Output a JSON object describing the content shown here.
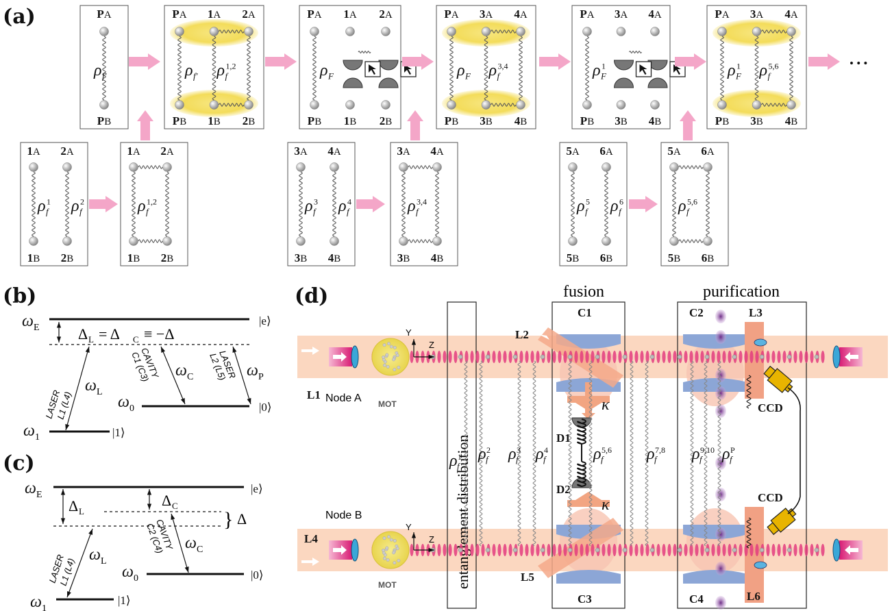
{
  "panel_labels": {
    "a": "(a)",
    "b": "(b)",
    "c": "(c)",
    "d": "(d)"
  },
  "boxes_top": [
    {
      "top_labels": [
        [
          "P",
          "A"
        ]
      ],
      "bottom_labels": [
        [
          "P",
          "B"
        ]
      ],
      "rho_base": "ρ",
      "rho_sub": "f'",
      "rho_sup": "",
      "extra_rho": null,
      "gold": false,
      "detect": false
    },
    {
      "top_labels": [
        [
          "P",
          "A"
        ],
        [
          "1",
          "A"
        ],
        [
          "2",
          "A"
        ]
      ],
      "bottom_labels": [
        [
          "P",
          "B"
        ],
        [
          "1",
          "B"
        ],
        [
          "2",
          "B"
        ]
      ],
      "rho_base": "ρ",
      "rho_sub": "f'",
      "rho_sup": "",
      "extra_rho": {
        "sub": "f",
        "sup": "1,2"
      },
      "gold": true,
      "detect": false
    },
    {
      "top_labels": [
        [
          "P",
          "A"
        ],
        [
          "1",
          "A"
        ],
        [
          "2",
          "A"
        ]
      ],
      "bottom_labels": [
        [
          "P",
          "B"
        ],
        [
          "1",
          "B"
        ],
        [
          "2",
          "B"
        ]
      ],
      "rho_base": "ρ",
      "rho_sub": "F",
      "rho_sup": "",
      "extra_rho": null,
      "gold": false,
      "detect": true
    },
    {
      "top_labels": [
        [
          "P",
          "A"
        ],
        [
          "3",
          "A"
        ],
        [
          "4",
          "A"
        ]
      ],
      "bottom_labels": [
        [
          "P",
          "B"
        ],
        [
          "3",
          "B"
        ],
        [
          "4",
          "B"
        ]
      ],
      "rho_base": "ρ",
      "rho_sub": "F",
      "rho_sup": "",
      "extra_rho": {
        "sub": "f",
        "sup": "3,4"
      },
      "gold": true,
      "detect": false
    },
    {
      "top_labels": [
        [
          "P",
          "A"
        ],
        [
          "3",
          "A"
        ],
        [
          "4",
          "A"
        ]
      ],
      "bottom_labels": [
        [
          "P",
          "B"
        ],
        [
          "3",
          "B"
        ],
        [
          "4",
          "B"
        ]
      ],
      "rho_base": "ρ",
      "rho_sub": "F",
      "rho_sup": "1",
      "extra_rho": null,
      "gold": false,
      "detect": true
    },
    {
      "top_labels": [
        [
          "P",
          "A"
        ],
        [
          "3",
          "A"
        ],
        [
          "4",
          "A"
        ]
      ],
      "bottom_labels": [
        [
          "P",
          "B"
        ],
        [
          "3",
          "B"
        ],
        [
          "4",
          "B"
        ]
      ],
      "rho_base": "ρ",
      "rho_sub": "F",
      "rho_sup": "1",
      "extra_rho": {
        "sub": "f",
        "sup": "5,6"
      },
      "gold": true,
      "detect": false
    }
  ],
  "boxes_bottom": [
    {
      "top_labels": [
        [
          "1",
          "A"
        ],
        [
          "2",
          "A"
        ]
      ],
      "bottom_labels": [
        [
          "1",
          "B"
        ],
        [
          "2",
          "B"
        ]
      ],
      "rhos": [
        {
          "sub": "f",
          "sup": "1"
        },
        {
          "sub": "f",
          "sup": "2"
        }
      ],
      "joined": false
    },
    {
      "top_labels": [
        [
          "1",
          "A"
        ],
        [
          "2",
          "A"
        ]
      ],
      "bottom_labels": [
        [
          "1",
          "B"
        ],
        [
          "2",
          "B"
        ]
      ],
      "rhos": [
        {
          "sub": "f",
          "sup": "1,2"
        }
      ],
      "joined": true
    },
    {
      "top_labels": [
        [
          "3",
          "A"
        ],
        [
          "4",
          "A"
        ]
      ],
      "bottom_labels": [
        [
          "3",
          "B"
        ],
        [
          "4",
          "B"
        ]
      ],
      "rhos": [
        {
          "sub": "f",
          "sup": "3"
        },
        {
          "sub": "f",
          "sup": "4"
        }
      ],
      "joined": false
    },
    {
      "top_labels": [
        [
          "3",
          "A"
        ],
        [
          "4",
          "A"
        ]
      ],
      "bottom_labels": [
        [
          "3",
          "B"
        ],
        [
          "4",
          "B"
        ]
      ],
      "rhos": [
        {
          "sub": "f",
          "sup": "3,4"
        }
      ],
      "joined": true
    },
    {
      "top_labels": [
        [
          "5",
          "A"
        ],
        [
          "6",
          "A"
        ]
      ],
      "bottom_labels": [
        [
          "5",
          "B"
        ],
        [
          "6",
          "B"
        ]
      ],
      "rhos": [
        {
          "sub": "f",
          "sup": "5"
        },
        {
          "sub": "f",
          "sup": "6"
        }
      ],
      "joined": false
    },
    {
      "top_labels": [
        [
          "5",
          "A"
        ],
        [
          "6",
          "A"
        ]
      ],
      "bottom_labels": [
        [
          "5",
          "B"
        ],
        [
          "6",
          "B"
        ]
      ],
      "rhos": [
        {
          "sub": "f",
          "sup": "5,6"
        }
      ],
      "joined": true
    }
  ],
  "ellipsis": "• • •",
  "panel_b": {
    "omega_e": "ω",
    "omega_e_sub": "E",
    "ket_e": "|e⟩",
    "ket_0": "|0⟩",
    "ket_1": "|1⟩",
    "detuning": "Δ",
    "detuning_L": "L",
    "detuning_C": "C",
    "detuning_eq": "= Δ",
    "detuning_eq2": "≡ −Δ",
    "laser1": "LASER",
    "laser1b": "L1 (L4)",
    "cavity": "CAVITY",
    "cavityb": "C1 (C3)",
    "laser2": "LASER",
    "laser2b": "L2 (L5)",
    "omega_l": "ω",
    "omega_l_sub": "L",
    "omega_c": "ω",
    "omega_c_sub": "C",
    "omega_p": "ω",
    "omega_p_sub": "P",
    "omega_0": "ω",
    "omega_0_sub": "0",
    "omega_1": "ω",
    "omega_1_sub": "1"
  },
  "panel_c": {
    "omega_e": "ω",
    "omega_e_sub": "E",
    "ket_e": "|e⟩",
    "ket_0": "|0⟩",
    "ket_1": "|1⟩",
    "delta_L": "Δ",
    "delta_L_sub": "L",
    "delta_C": "Δ",
    "delta_C_sub": "C",
    "delta": "Δ",
    "laser1": "LASER",
    "laser1b": "L1 (L4)",
    "cavity": "CAVITY",
    "cavityb": "C2 (C4)",
    "omega_l": "ω",
    "omega_l_sub": "L",
    "omega_c": "ω",
    "omega_c_sub": "C",
    "omega_0": "ω",
    "omega_0_sub": "0",
    "omega_1": "ω",
    "omega_1_sub": "1"
  },
  "panel_d": {
    "fusion": "fusion",
    "purification": "purification",
    "entanglement": "entanglement distribution",
    "node_a": "Node A",
    "node_b": "Node B",
    "mot": "MOT",
    "axis_y": "Y",
    "axis_z": "Z",
    "lasers": [
      "L1",
      "L2",
      "L3",
      "L4",
      "L5",
      "L6"
    ],
    "cavities": [
      "C1",
      "C2",
      "C3",
      "C4"
    ],
    "detectors": [
      "D1",
      "D2"
    ],
    "ccd": "CCD",
    "kappa": "κ",
    "rhos": [
      {
        "sub": "f",
        "sup": "1"
      },
      {
        "sub": "f",
        "sup": "2"
      },
      {
        "sub": "f",
        "sup": "3"
      },
      {
        "sub": "f",
        "sup": "4"
      },
      {
        "sub": "f",
        "sup": "5,6"
      },
      {
        "sub": "f",
        "sup": "7,8"
      },
      {
        "sub": "f",
        "sup": "9,10"
      },
      {
        "sub": "f",
        "sup": "P"
      }
    ]
  },
  "colors": {
    "arrow": "#f4a6c8",
    "gold": "#f5e27a",
    "beam": "#fbd7c0",
    "laser": "#e0377f",
    "cavity": "#8ca6d6",
    "ccd": "#e8b400"
  }
}
